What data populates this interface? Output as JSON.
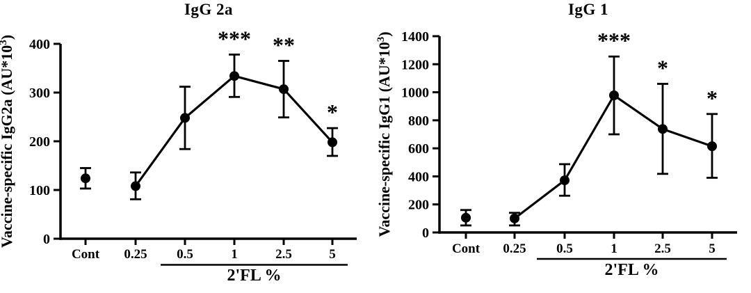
{
  "figure": {
    "background": "#ffffff",
    "ink_color": "#000000",
    "description": "Two dose-response line charts with SD error bars and significance asterisks"
  },
  "chart_data": [
    {
      "type": "line",
      "title": "IgG 2a",
      "ylabel": "Vaccine-specific IgG2a (AU*10³)",
      "xlabel": "2'FL %",
      "categories": [
        "Cont",
        "0.25",
        "0.5",
        "1",
        "2.5",
        "5"
      ],
      "series": [
        {
          "name": "Vaccine-specific IgG2a",
          "values": [
            124,
            108,
            248,
            334,
            307,
            198
          ],
          "error_low": [
            103,
            81,
            184,
            291,
            249,
            170
          ],
          "error_high": [
            145,
            136,
            312,
            378,
            365,
            227
          ]
        }
      ],
      "significance": [
        "",
        "",
        "",
        "***",
        "**",
        "*"
      ],
      "line_connects_from_category": "0.25",
      "isolated_points": [
        "Cont"
      ],
      "ylim": [
        0,
        400
      ],
      "yticks": [
        0,
        100,
        200,
        300,
        400
      ],
      "grid": false,
      "legend_position": "none",
      "marker": "filled-circle",
      "error_bar_style": "capped",
      "xlabel_underline_categories": [
        "0.5",
        "1",
        "2.5",
        "5"
      ]
    },
    {
      "type": "line",
      "title": "IgG 1",
      "ylabel": "Vaccine-specific IgG1 (AU*10³)",
      "xlabel": "2'FL %",
      "categories": [
        "Cont",
        "0.25",
        "0.5",
        "1",
        "2.5",
        "5"
      ],
      "series": [
        {
          "name": "Vaccine-specific IgG1",
          "values": [
            105,
            100,
            372,
            978,
            738,
            615
          ],
          "error_low": [
            50,
            50,
            262,
            700,
            418,
            390
          ],
          "error_high": [
            160,
            140,
            487,
            1255,
            1060,
            845
          ]
        }
      ],
      "significance": [
        "",
        "",
        "",
        "***",
        "*",
        "*"
      ],
      "line_connects_from_category": "0.25",
      "isolated_points": [
        "Cont"
      ],
      "ylim": [
        0,
        1400
      ],
      "yticks": [
        0,
        200,
        400,
        600,
        800,
        1000,
        1200,
        1400
      ],
      "grid": false,
      "legend_position": "none",
      "marker": "filled-circle",
      "error_bar_style": "capped",
      "xlabel_underline_categories": [
        "0.5",
        "1",
        "2.5",
        "5"
      ]
    }
  ]
}
